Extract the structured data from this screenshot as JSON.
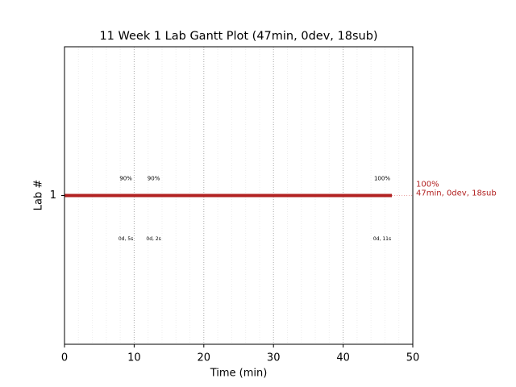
{
  "chart_data": {
    "type": "gantt",
    "title": "11 Week 1 Lab Gantt Plot (47min, 0dev, 18sub)",
    "x_label": "Time (min)",
    "y_label": "Lab #",
    "xlim": [
      0,
      50
    ],
    "xticks": [
      0,
      10,
      20,
      30,
      40,
      50
    ],
    "x_minor_ticks": [
      2,
      4,
      6,
      8,
      12,
      14,
      16,
      18,
      22,
      24,
      26,
      28,
      32,
      34,
      36,
      38,
      42,
      44,
      46,
      48
    ],
    "ylim": [
      0,
      2
    ],
    "yticks": [
      1
    ],
    "grid": true,
    "bars": [
      {
        "y": 1,
        "start": 0,
        "end": 47,
        "color": "#b22222",
        "label_top": "100%",
        "label_bottom": "47min, 0dev, 18sub"
      }
    ],
    "events": [
      {
        "x": 8.8,
        "top": "90%",
        "bottom": "0d, 5s"
      },
      {
        "x": 12.8,
        "top": "90%",
        "bottom": "0d, 2s"
      },
      {
        "x": 45.6,
        "top": "100%",
        "bottom": "0d, 11s"
      }
    ]
  }
}
